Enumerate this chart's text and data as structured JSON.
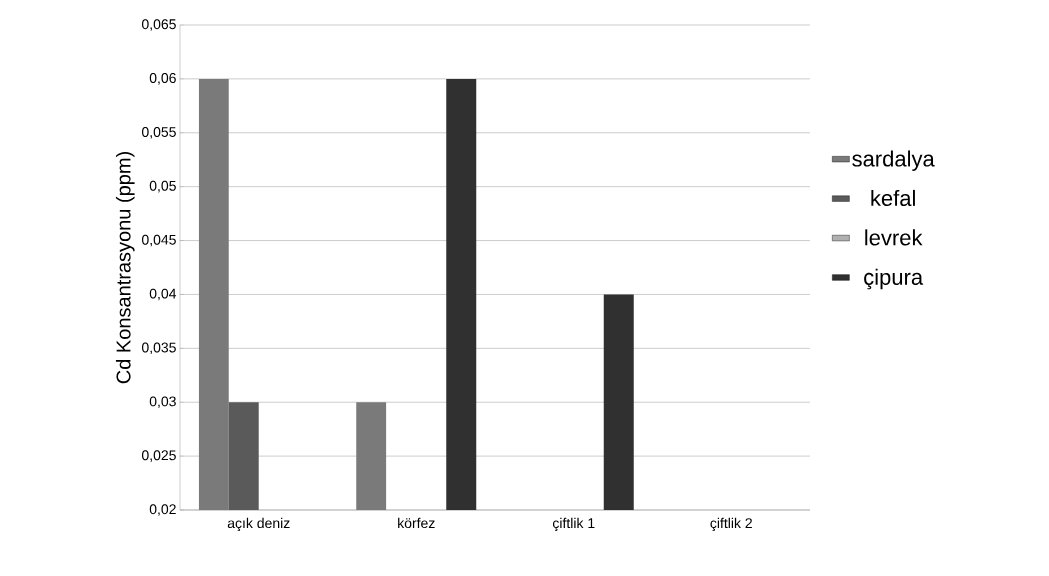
{
  "chart_data": {
    "type": "bar",
    "ylabel": "Cd Konsantrasyonu (ppm)",
    "categories": [
      "açık deniz",
      "körfez",
      "çiftlik 1",
      "çiftlik 2"
    ],
    "series": [
      {
        "name": "sardalya",
        "color": "#7a7a7a",
        "values": [
          0.06,
          0.03,
          null,
          null
        ]
      },
      {
        "name": "kefal",
        "color": "#5a5a5a",
        "values": [
          0.03,
          null,
          null,
          null
        ]
      },
      {
        "name": "levrek",
        "color": "#b0b0b0",
        "values": [
          null,
          null,
          null,
          null
        ]
      },
      {
        "name": "çipura",
        "color": "#303030",
        "values": [
          null,
          0.06,
          0.04,
          null
        ]
      }
    ],
    "ylim": [
      0.02,
      0.065
    ],
    "yticks": [
      {
        "value": 0.02,
        "label": "0,02"
      },
      {
        "value": 0.025,
        "label": "0,025"
      },
      {
        "value": 0.03,
        "label": "0,03"
      },
      {
        "value": 0.035,
        "label": "0,035"
      },
      {
        "value": 0.04,
        "label": "0,04"
      },
      {
        "value": 0.045,
        "label": "0,045"
      },
      {
        "value": 0.05,
        "label": "0,05"
      },
      {
        "value": 0.055,
        "label": "0,055"
      },
      {
        "value": 0.06,
        "label": "0,06"
      },
      {
        "value": 0.065,
        "label": "0,065"
      }
    ],
    "grid": "y",
    "legend": "right"
  }
}
